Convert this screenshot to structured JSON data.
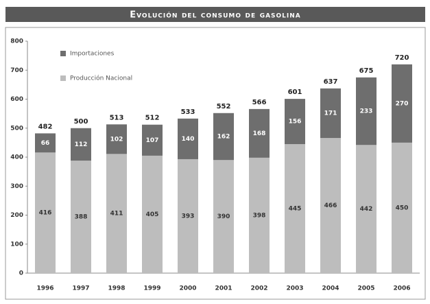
{
  "chart_data": {
    "type": "stacked_bar",
    "title": "Evolución del consumo de gasolina",
    "categories": [
      "1996",
      "1997",
      "1998",
      "1999",
      "2000",
      "2001",
      "2002",
      "2003",
      "2004",
      "2005",
      "2006"
    ],
    "series": [
      {
        "name": "Importaciones",
        "color": "#6e6e6e",
        "values": [
          66,
          112,
          102,
          107,
          140,
          162,
          168,
          156,
          171,
          233,
          270
        ]
      },
      {
        "name": "Producción Nacional",
        "color": "#bdbdbd",
        "values": [
          416,
          388,
          411,
          405,
          393,
          390,
          398,
          445,
          466,
          442,
          450
        ]
      }
    ],
    "totals": [
      482,
      500,
      513,
      512,
      533,
      552,
      566,
      601,
      637,
      675,
      720
    ],
    "ylim": [
      0,
      800
    ],
    "yticks": [
      0,
      100,
      200,
      300,
      400,
      500,
      600,
      700,
      800
    ],
    "legend": "top-left"
  }
}
